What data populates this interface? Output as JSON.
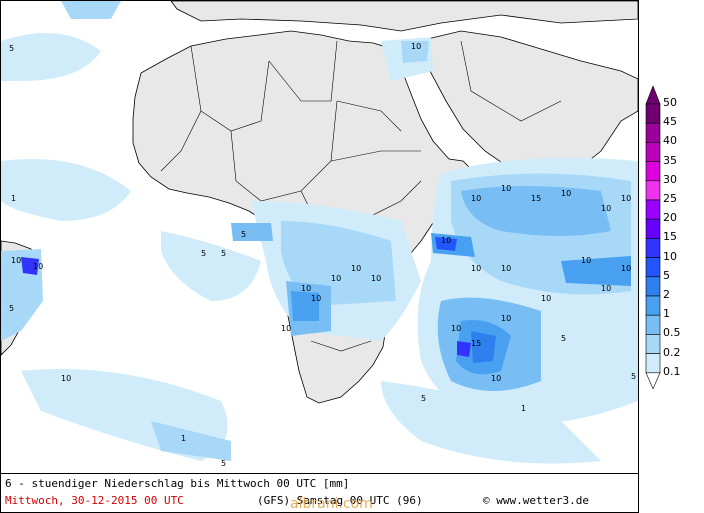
{
  "title": "6 - stuendiger Niederschlag bis Mittwoch 00 UTC [mm]",
  "date_text": "Mittwoch, 30-12-2015  00 UTC",
  "model_text": "(GFS)  Samstag 00 UTC (96)",
  "copyright_text": "© www.wetter3.de",
  "watermark": "albrani.com",
  "legend": {
    "labels": [
      "50",
      "45",
      "40",
      "35",
      "30",
      "25",
      "20",
      "15",
      "10",
      "5",
      "2",
      "1",
      "0.5",
      "0.2",
      "0.1"
    ],
    "colors": [
      "#700070",
      "#9a009a",
      "#bb00bb",
      "#dd00dd",
      "#ee33ee",
      "#9900ff",
      "#6600ff",
      "#3333ff",
      "#2255ff",
      "#2f7fee",
      "#4aa0f0",
      "#78bef5",
      "#a8d8f8",
      "#d0ecfb",
      "#ffffff"
    ]
  },
  "colors": {
    "land": "#e8e8e8",
    "ocean": "#ffffff",
    "border": "#000000",
    "grid": "#888888"
  }
}
